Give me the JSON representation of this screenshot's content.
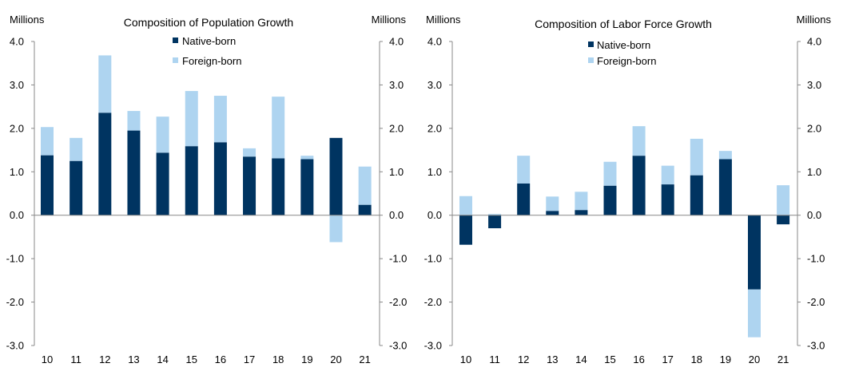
{
  "colors": {
    "native": "#003461",
    "foreign": "#aed4f0",
    "axis": "#888888"
  },
  "chart_data": [
    {
      "type": "bar",
      "stacked": true,
      "title": "Composition of Population Growth",
      "ylabel_left": "Millions",
      "ylabel_right": "Millions",
      "ylim": [
        -3.0,
        4.0
      ],
      "yticks": [
        "4.0",
        "3.0",
        "2.0",
        "1.0",
        "0.0",
        "-1.0",
        "-2.0",
        "-3.0"
      ],
      "categories": [
        "10",
        "11",
        "12",
        "13",
        "14",
        "15",
        "16",
        "17",
        "18",
        "19",
        "20",
        "21"
      ],
      "legend": [
        "Native-born",
        "Foreign-born"
      ],
      "legend_position": "top-center",
      "series": [
        {
          "name": "Native-born",
          "values": [
            1.38,
            1.25,
            2.36,
            1.95,
            1.44,
            1.59,
            1.68,
            1.35,
            1.31,
            1.29,
            1.78,
            0.24
          ]
        },
        {
          "name": "Foreign-born",
          "values": [
            0.65,
            0.53,
            1.32,
            0.45,
            0.83,
            1.27,
            1.07,
            0.19,
            1.42,
            0.08,
            -0.62,
            0.88
          ]
        }
      ]
    },
    {
      "type": "bar",
      "stacked": true,
      "title": "Composition of Labor Force Growth",
      "ylabel_left": "Millions",
      "ylabel_right": "Millions",
      "ylim": [
        -3.0,
        4.0
      ],
      "yticks": [
        "4.0",
        "3.0",
        "2.0",
        "1.0",
        "0.0",
        "-1.0",
        "-2.0",
        "-3.0"
      ],
      "categories": [
        "10",
        "11",
        "12",
        "13",
        "14",
        "15",
        "16",
        "17",
        "18",
        "19",
        "20",
        "21"
      ],
      "legend": [
        "Native-born",
        "Foreign-born"
      ],
      "legend_position": "top-center",
      "series": [
        {
          "name": "Native-born",
          "values": [
            -0.68,
            -0.3,
            0.73,
            0.1,
            0.12,
            0.68,
            1.37,
            0.71,
            0.92,
            1.29,
            -1.71,
            -0.21
          ]
        },
        {
          "name": "Foreign-born",
          "values": [
            0.44,
            0.03,
            0.64,
            0.33,
            0.42,
            0.55,
            0.68,
            0.43,
            0.84,
            0.19,
            -1.1,
            0.69
          ]
        }
      ]
    }
  ]
}
